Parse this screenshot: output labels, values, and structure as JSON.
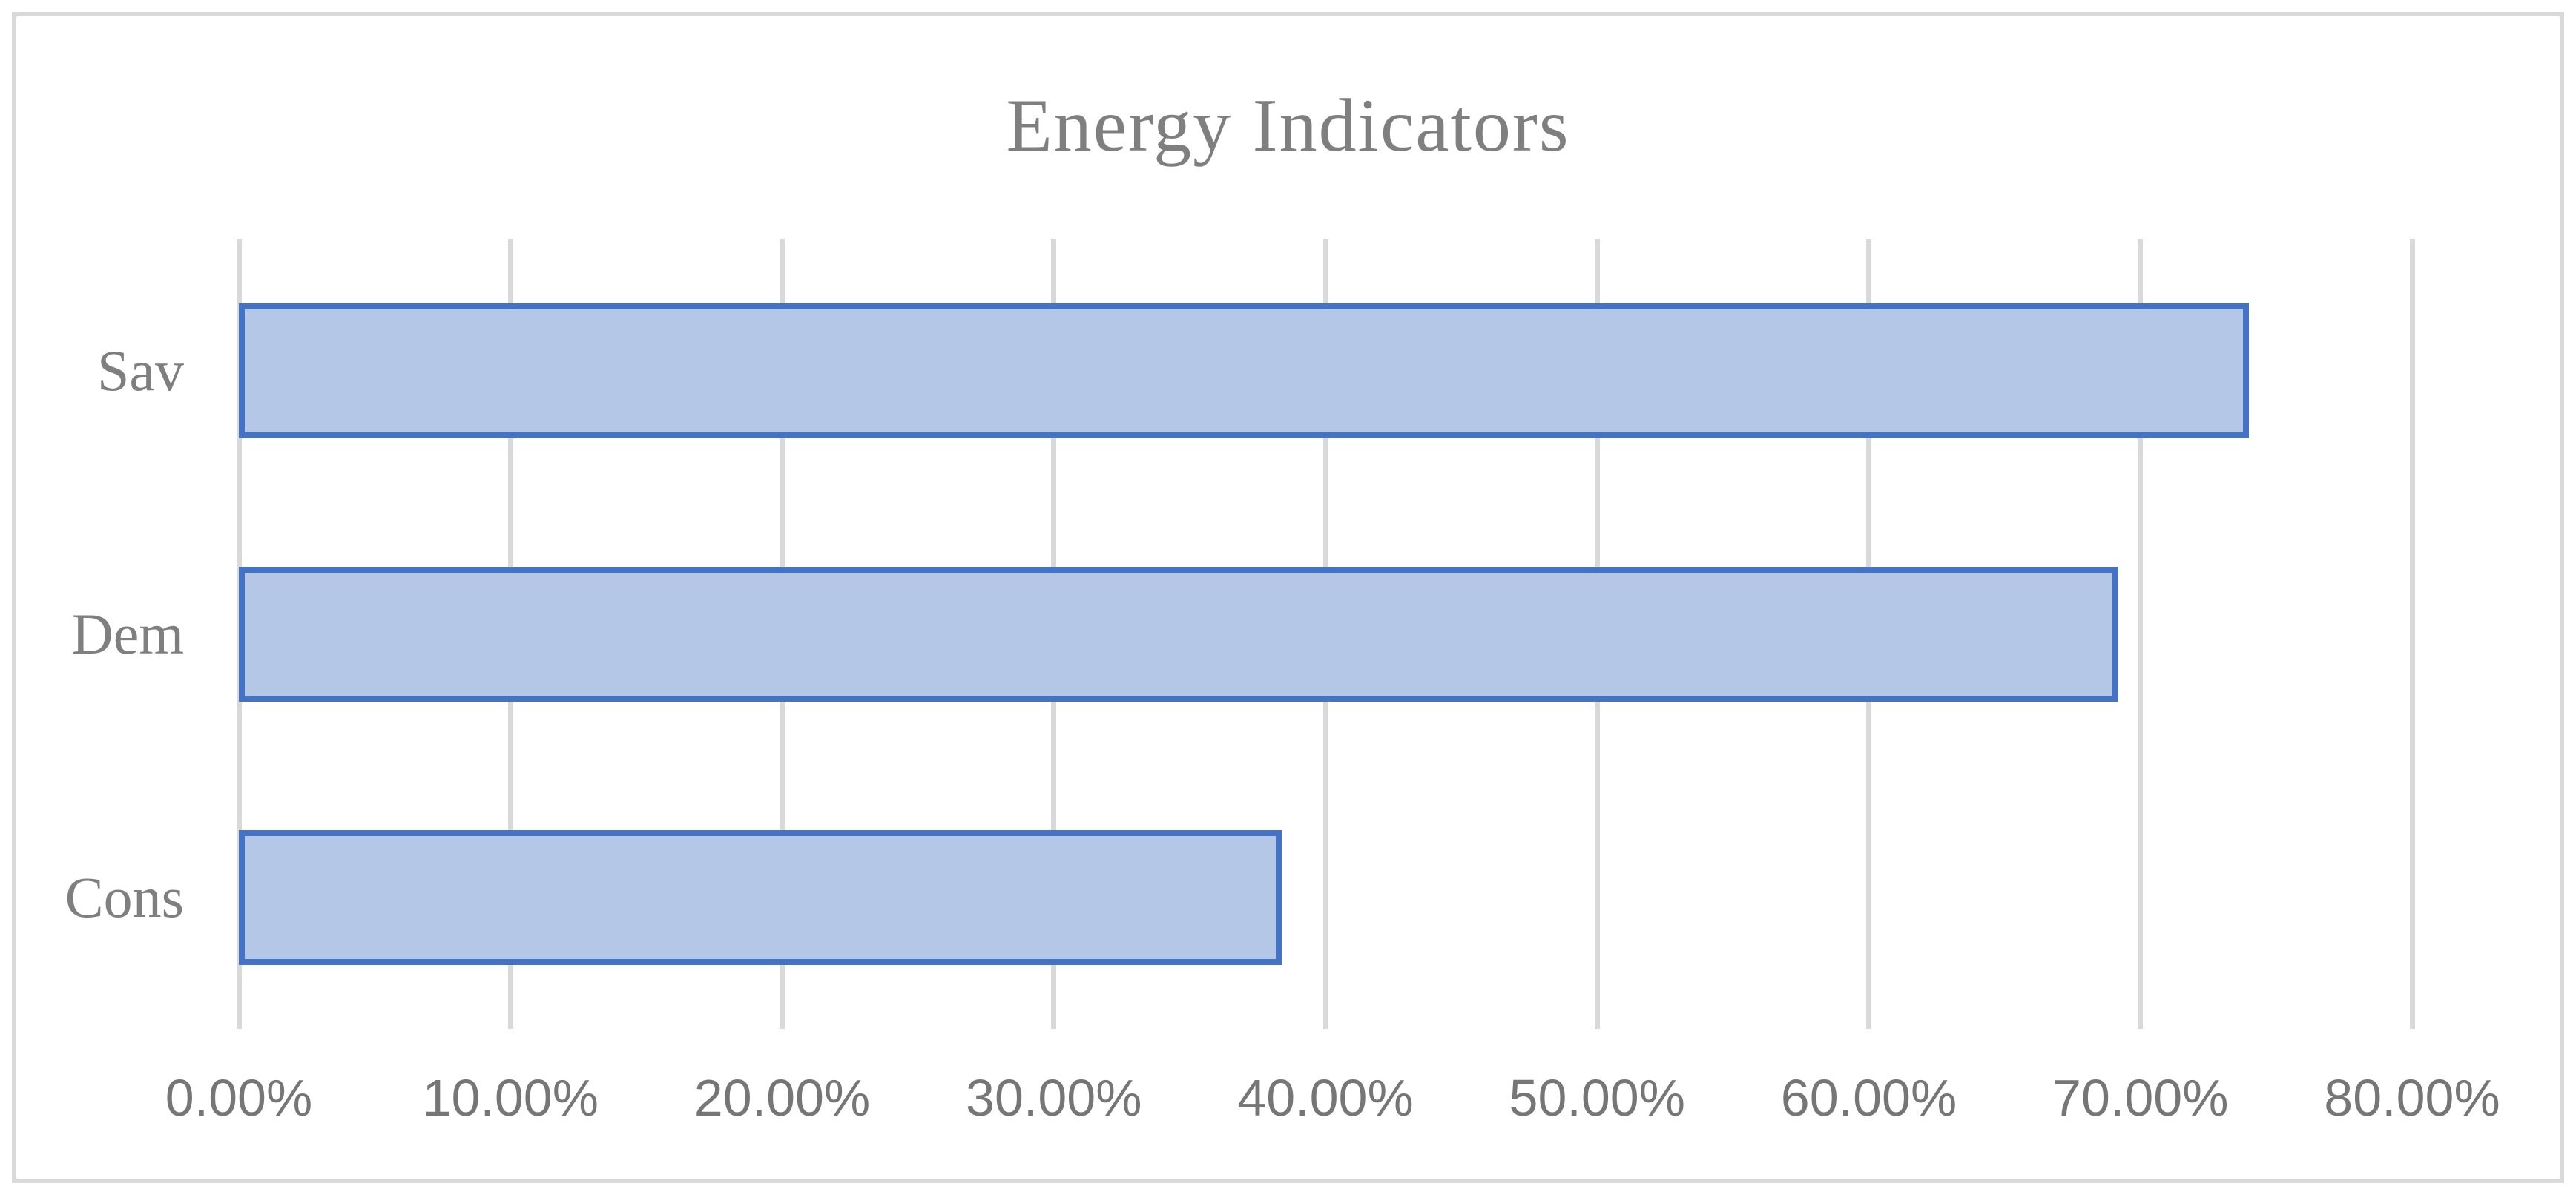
{
  "figure": {
    "background": "#ffffff",
    "border_color": "#d9d9d9"
  },
  "chart_data": {
    "type": "bar",
    "orientation": "horizontal",
    "title": "Energy Indicators",
    "categories": [
      "Sav",
      "Dem",
      "Cons"
    ],
    "values": [
      74.0,
      69.2,
      38.4
    ],
    "value_unit": "%",
    "xlabel": "",
    "ylabel": "",
    "xlim": [
      0,
      80
    ],
    "x_ticks": [
      0,
      10,
      20,
      30,
      40,
      50,
      60,
      70,
      80
    ],
    "x_tick_labels": [
      "0.00%",
      "10.00%",
      "20.00%",
      "30.00%",
      "40.00%",
      "50.00%",
      "60.00%",
      "70.00%",
      "80.00%"
    ],
    "grid": true,
    "legend": false,
    "colors": {
      "bar_fill": "#b4c7e7",
      "bar_border": "#4472c4",
      "gridline": "#d9d9d9",
      "title_color": "#7f7f7f",
      "category_label_color": "#7f7f7f",
      "tick_label_color": "#767676"
    }
  }
}
